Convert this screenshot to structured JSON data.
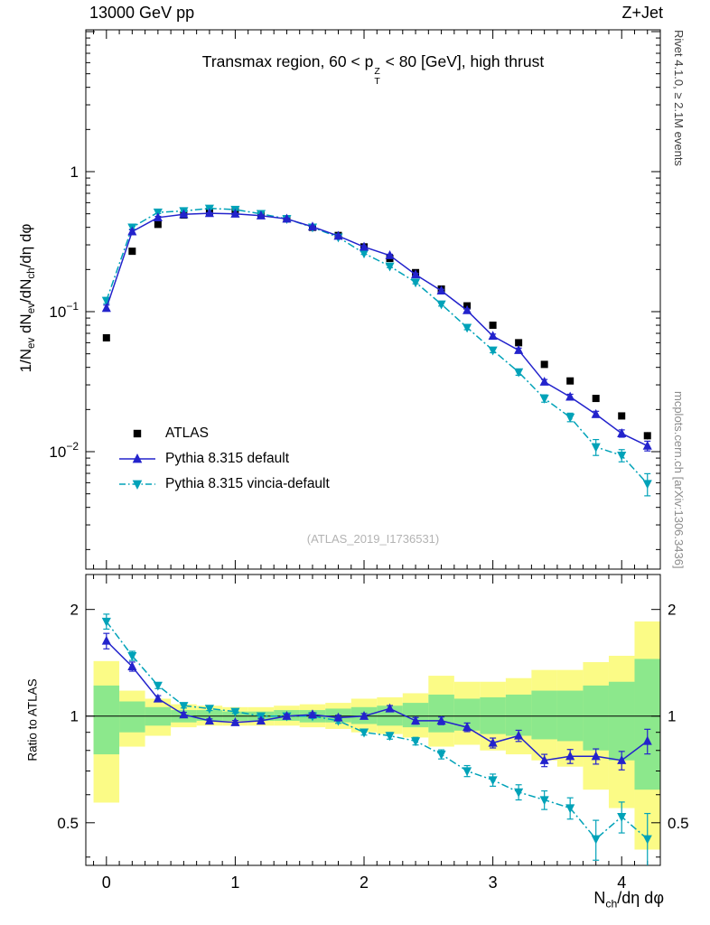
{
  "header": {
    "left": "13000 GeV pp",
    "right": "Z+Jet"
  },
  "titles": {
    "watermark": "(ATLAS_2019_I1736531)",
    "rivet": "Rivet 4.1.0, ≥ 2.1M events",
    "mcplots": "mcplots.cern.ch [arXiv:1306.3436]",
    "ylabel_ratio": "Ratio to ATLAS"
  },
  "labels": {
    "title": [
      {
        "t": "Transmax region, 60 < p"
      },
      {
        "stack": [
          "Z",
          "T"
        ]
      },
      {
        "t": " < 80 [GeV], high thrust"
      }
    ],
    "ylabel_top": [
      {
        "t": "1/N"
      },
      {
        "sub": "ev"
      },
      {
        "t": " dN"
      },
      {
        "sub": "ev"
      },
      {
        "t": "/dN"
      },
      {
        "sub": "ch"
      },
      {
        "t": "/dη dφ"
      }
    ],
    "xlabel": [
      {
        "t": "N"
      },
      {
        "sub": "ch"
      },
      {
        "t": "/dη dφ"
      }
    ]
  },
  "legend": {
    "items": [
      {
        "label": "ATLAS",
        "series": 0
      },
      {
        "label": "Pythia 8.315 default",
        "series": 1
      },
      {
        "label": "Pythia 8.315 vincia-default",
        "series": 2
      }
    ]
  },
  "colors": {
    "frame": "#000000",
    "band_yellow": "#fbfb86",
    "band_green": "#8ce88c",
    "blue": "#2323cc",
    "cyan": "#00a2b8",
    "black": "#000000"
  },
  "chart_data": {
    "type": "line",
    "title": "Transmax region, 60 < pT^Z < 80 [GeV], high thrust",
    "xlabel": "N_ch/deta dphi",
    "ylabel": "1/N_ev dN_ev/dN_ch/deta dphi",
    "xlim": [
      -0.16,
      4.3
    ],
    "xticks": [
      0,
      1,
      2,
      3,
      4
    ],
    "xtick_minor_step": 0.1,
    "bin_half_width": 0.1,
    "x": [
      0,
      0.2,
      0.4,
      0.6,
      0.8,
      1.0,
      1.2,
      1.4,
      1.6,
      1.8,
      2.0,
      2.2,
      2.4,
      2.6,
      2.8,
      3.0,
      3.2,
      3.4,
      3.6,
      3.8,
      4.0,
      4.2
    ],
    "top": {
      "ylim": [
        0.00145,
        10.3
      ],
      "yticks": [
        {
          "v": 1,
          "t": "1"
        },
        {
          "v": 0.1,
          "t": "10",
          "e": "−1"
        },
        {
          "v": 0.01,
          "t": "10",
          "e": "−2"
        }
      ]
    },
    "series": [
      {
        "name": "ATLAS",
        "marker": "square",
        "color": "#000000",
        "line": null,
        "values": [
          0.065,
          0.27,
          0.42,
          0.49,
          0.52,
          0.52,
          0.5,
          0.46,
          0.4,
          0.35,
          0.29,
          0.24,
          0.19,
          0.145,
          0.11,
          0.08,
          0.06,
          0.042,
          0.032,
          0.024,
          0.018,
          0.013
        ],
        "rel_err": [
          0.04,
          0.03,
          0.025,
          0.02,
          0.02,
          0.02,
          0.02,
          0.02,
          0.02,
          0.02,
          0.02,
          0.025,
          0.025,
          0.03,
          0.03,
          0.035,
          0.04,
          0.04,
          0.045,
          0.05,
          0.05,
          0.06
        ]
      },
      {
        "name": "Pythia 8.315 default",
        "marker": "triangle-up",
        "color": "#2323cc",
        "line": "solid",
        "values": [
          0.106,
          0.373,
          0.47,
          0.495,
          0.504,
          0.499,
          0.485,
          0.46,
          0.404,
          0.347,
          0.29,
          0.252,
          0.184,
          0.141,
          0.102,
          0.067,
          0.053,
          0.0315,
          0.0246,
          0.0185,
          0.0135,
          0.011
        ],
        "rel_err": [
          0.05,
          0.03,
          0.02,
          0.015,
          0.012,
          0.012,
          0.012,
          0.012,
          0.013,
          0.015,
          0.017,
          0.02,
          0.022,
          0.025,
          0.028,
          0.032,
          0.036,
          0.04,
          0.045,
          0.05,
          0.06,
          0.08
        ]
      },
      {
        "name": "Pythia 8.315 vincia-default",
        "marker": "triangle-down",
        "color": "#00a2b8",
        "line": "dashdot",
        "values": [
          0.12,
          0.4,
          0.512,
          0.524,
          0.546,
          0.536,
          0.5,
          0.46,
          0.4,
          0.34,
          0.261,
          0.211,
          0.162,
          0.113,
          0.077,
          0.053,
          0.037,
          0.024,
          0.0176,
          0.0108,
          0.0094,
          0.0059
        ],
        "rel_err": [
          0.05,
          0.03,
          0.02,
          0.015,
          0.012,
          0.012,
          0.012,
          0.013,
          0.014,
          0.016,
          0.018,
          0.022,
          0.025,
          0.03,
          0.035,
          0.04,
          0.05,
          0.06,
          0.07,
          0.13,
          0.1,
          0.18
        ]
      }
    ],
    "ratio": {
      "reference": "ATLAS",
      "ylim": [
        0.379,
        2.51
      ],
      "yticks": [
        {
          "v": 0.5,
          "label": "0.5"
        },
        {
          "v": 1,
          "label": "1"
        },
        {
          "v": 2,
          "label": "2"
        }
      ],
      "minor_ticks": [
        0.4,
        0.6,
        0.7,
        0.8,
        0.9
      ],
      "series": [
        {
          "name": "Pythia 8.315 default",
          "values": [
            1.63,
            1.38,
            1.12,
            1.01,
            0.97,
            0.96,
            0.97,
            1.0,
            1.01,
            0.99,
            1.0,
            1.05,
            0.97,
            0.97,
            0.93,
            0.84,
            0.88,
            0.75,
            0.77,
            0.77,
            0.75,
            0.85
          ],
          "err": [
            0.082,
            0.041,
            0.022,
            0.015,
            0.012,
            0.012,
            0.012,
            0.012,
            0.013,
            0.015,
            0.017,
            0.021,
            0.021,
            0.024,
            0.026,
            0.027,
            0.032,
            0.03,
            0.035,
            0.038,
            0.045,
            0.068
          ]
        },
        {
          "name": "Pythia 8.315 vincia-default",
          "values": [
            1.85,
            1.48,
            1.22,
            1.07,
            1.05,
            1.03,
            1.0,
            1.0,
            1.0,
            0.97,
            0.9,
            0.88,
            0.85,
            0.78,
            0.7,
            0.66,
            0.61,
            0.58,
            0.55,
            0.45,
            0.52,
            0.45
          ],
          "err": [
            0.09,
            0.044,
            0.024,
            0.016,
            0.013,
            0.012,
            0.012,
            0.013,
            0.014,
            0.016,
            0.016,
            0.019,
            0.021,
            0.023,
            0.025,
            0.026,
            0.03,
            0.035,
            0.038,
            0.058,
            0.052,
            0.081
          ]
        }
      ],
      "bands": {
        "yellow": [
          [
            0.57,
            1.43
          ],
          [
            0.82,
            1.18
          ],
          [
            0.88,
            1.12
          ],
          [
            0.93,
            1.08
          ],
          [
            0.94,
            1.07
          ],
          [
            0.94,
            1.06
          ],
          [
            0.94,
            1.06
          ],
          [
            0.94,
            1.07
          ],
          [
            0.93,
            1.08
          ],
          [
            0.92,
            1.09
          ],
          [
            0.9,
            1.12
          ],
          [
            0.89,
            1.13
          ],
          [
            0.87,
            1.16
          ],
          [
            0.82,
            1.3
          ],
          [
            0.83,
            1.25
          ],
          [
            0.8,
            1.25
          ],
          [
            0.78,
            1.28
          ],
          [
            0.75,
            1.35
          ],
          [
            0.72,
            1.35
          ],
          [
            0.62,
            1.42
          ],
          [
            0.55,
            1.48
          ],
          [
            0.42,
            1.85
          ]
        ],
        "green": [
          [
            0.78,
            1.22
          ],
          [
            0.9,
            1.1
          ],
          [
            0.94,
            1.06
          ],
          [
            0.96,
            1.04
          ],
          [
            0.97,
            1.04
          ],
          [
            0.97,
            1.03
          ],
          [
            0.97,
            1.03
          ],
          [
            0.97,
            1.04
          ],
          [
            0.96,
            1.04
          ],
          [
            0.96,
            1.05
          ],
          [
            0.95,
            1.06
          ],
          [
            0.94,
            1.07
          ],
          [
            0.93,
            1.09
          ],
          [
            0.9,
            1.15
          ],
          [
            0.91,
            1.12
          ],
          [
            0.89,
            1.13
          ],
          [
            0.88,
            1.15
          ],
          [
            0.86,
            1.18
          ],
          [
            0.85,
            1.18
          ],
          [
            0.8,
            1.22
          ],
          [
            0.75,
            1.25
          ],
          [
            0.62,
            1.45
          ]
        ]
      }
    }
  }
}
